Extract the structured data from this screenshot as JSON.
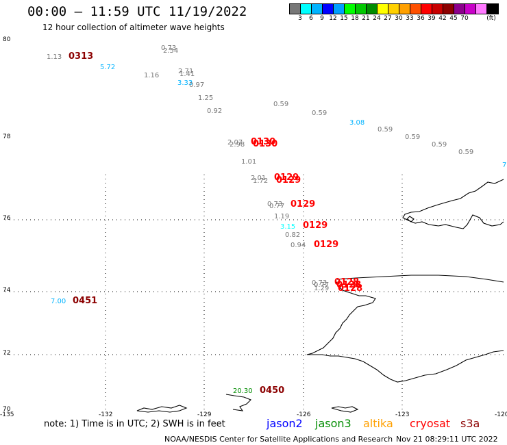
{
  "header": {
    "title": "00:00 — 11:59 UTC 11/19/2022",
    "subtitle": "12 hour collection of altimeter wave heights"
  },
  "colorbar": {
    "colors": [
      "#777777",
      "#00ffff",
      "#00b3ff",
      "#0000ff",
      "#009fff",
      "#00ff00",
      "#00c800",
      "#008c00",
      "#ffff00",
      "#ffd000",
      "#ffa000",
      "#ff5000",
      "#ff0000",
      "#c80000",
      "#8c0000",
      "#8c008c",
      "#c800c8",
      "#ff78ff",
      "#000000"
    ],
    "labels": [
      "3",
      "6",
      "9",
      "12",
      "15",
      "18",
      "21",
      "24",
      "27",
      "30",
      "33",
      "36",
      "39",
      "42",
      "45",
      "70",
      "(ft)"
    ]
  },
  "axes": {
    "lat_labels": [
      "80",
      "78",
      "76",
      "74",
      "72",
      "70"
    ],
    "lon_labels": [
      "-135",
      "-132",
      "-129",
      "-126",
      "-123",
      "-120"
    ]
  },
  "observations": [
    {
      "text": "1.13",
      "color": "#777777"
    },
    {
      "text": "0313",
      "color": "#8c0000"
    },
    {
      "text": "5.72",
      "color": "#00b3ff"
    },
    {
      "text": "0.73",
      "color": "#777777"
    },
    {
      "text": "2.54",
      "color": "#777777"
    },
    {
      "text": "1.16",
      "color": "#777777"
    },
    {
      "text": "2.71",
      "color": "#777777"
    },
    {
      "text": "1.41",
      "color": "#777777"
    },
    {
      "text": "3.33",
      "color": "#00b3ff"
    },
    {
      "text": "0.97",
      "color": "#777777"
    },
    {
      "text": "1.25",
      "color": "#777777"
    },
    {
      "text": "0.92",
      "color": "#777777"
    },
    {
      "text": "0.59",
      "color": "#777777"
    },
    {
      "text": "0.59",
      "color": "#777777"
    },
    {
      "text": "3.08",
      "color": "#00b3ff"
    },
    {
      "text": "0.59",
      "color": "#777777"
    },
    {
      "text": "0.59",
      "color": "#777777"
    },
    {
      "text": "0.59",
      "color": "#777777"
    },
    {
      "text": "0.59",
      "color": "#777777"
    },
    {
      "text": "7",
      "color": "#00b3ff"
    },
    {
      "text": "2.07",
      "color": "#777777"
    },
    {
      "text": "2.98",
      "color": "#777777"
    },
    {
      "text": "0130",
      "color": "#ff0000"
    },
    {
      "text": "0130",
      "color": "#ff0000"
    },
    {
      "text": "1.01",
      "color": "#777777"
    },
    {
      "text": "2.01",
      "color": "#777777"
    },
    {
      "text": "1.72",
      "color": "#777777"
    },
    {
      "text": "0129",
      "color": "#ff0000"
    },
    {
      "text": "0129",
      "color": "#ff0000"
    },
    {
      "text": "0.73",
      "color": "#777777"
    },
    {
      "text": "0.77",
      "color": "#777777"
    },
    {
      "text": "0129",
      "color": "#ff0000"
    },
    {
      "text": "1.19",
      "color": "#777777"
    },
    {
      "text": "3.15",
      "color": "#00ffff"
    },
    {
      "text": "0129",
      "color": "#ff0000"
    },
    {
      "text": "0.82",
      "color": "#777777"
    },
    {
      "text": "0.94",
      "color": "#777777"
    },
    {
      "text": "0129",
      "color": "#ff0000"
    },
    {
      "text": "0.73",
      "color": "#777777"
    },
    {
      "text": "0.77",
      "color": "#777777"
    },
    {
      "text": "1.29",
      "color": "#777777"
    },
    {
      "text": "0128",
      "color": "#ff0000"
    },
    {
      "text": "0128",
      "color": "#ff0000"
    },
    {
      "text": "0128",
      "color": "#ff0000"
    },
    {
      "text": "7.00",
      "color": "#00b3ff"
    },
    {
      "text": "0451",
      "color": "#8c0000"
    },
    {
      "text": "20.30",
      "color": "#008c00"
    },
    {
      "text": "0450",
      "color": "#8c0000"
    }
  ],
  "footer": {
    "note": "note: 1) Time is in UTC; 2) SWH is in feet",
    "satellites": [
      {
        "name": "jason2",
        "color": "#0000ff"
      },
      {
        "name": "jason3",
        "color": "#008c00"
      },
      {
        "name": "altika",
        "color": "#ffa000"
      },
      {
        "name": "cryosat",
        "color": "#ff0000"
      },
      {
        "name": "s3a",
        "color": "#8c0000"
      }
    ],
    "credit": "NOAA/NESDIS Center for Satellite Applications and Research",
    "timestamp": "Nov 21 08:29:11 UTC 2022"
  }
}
